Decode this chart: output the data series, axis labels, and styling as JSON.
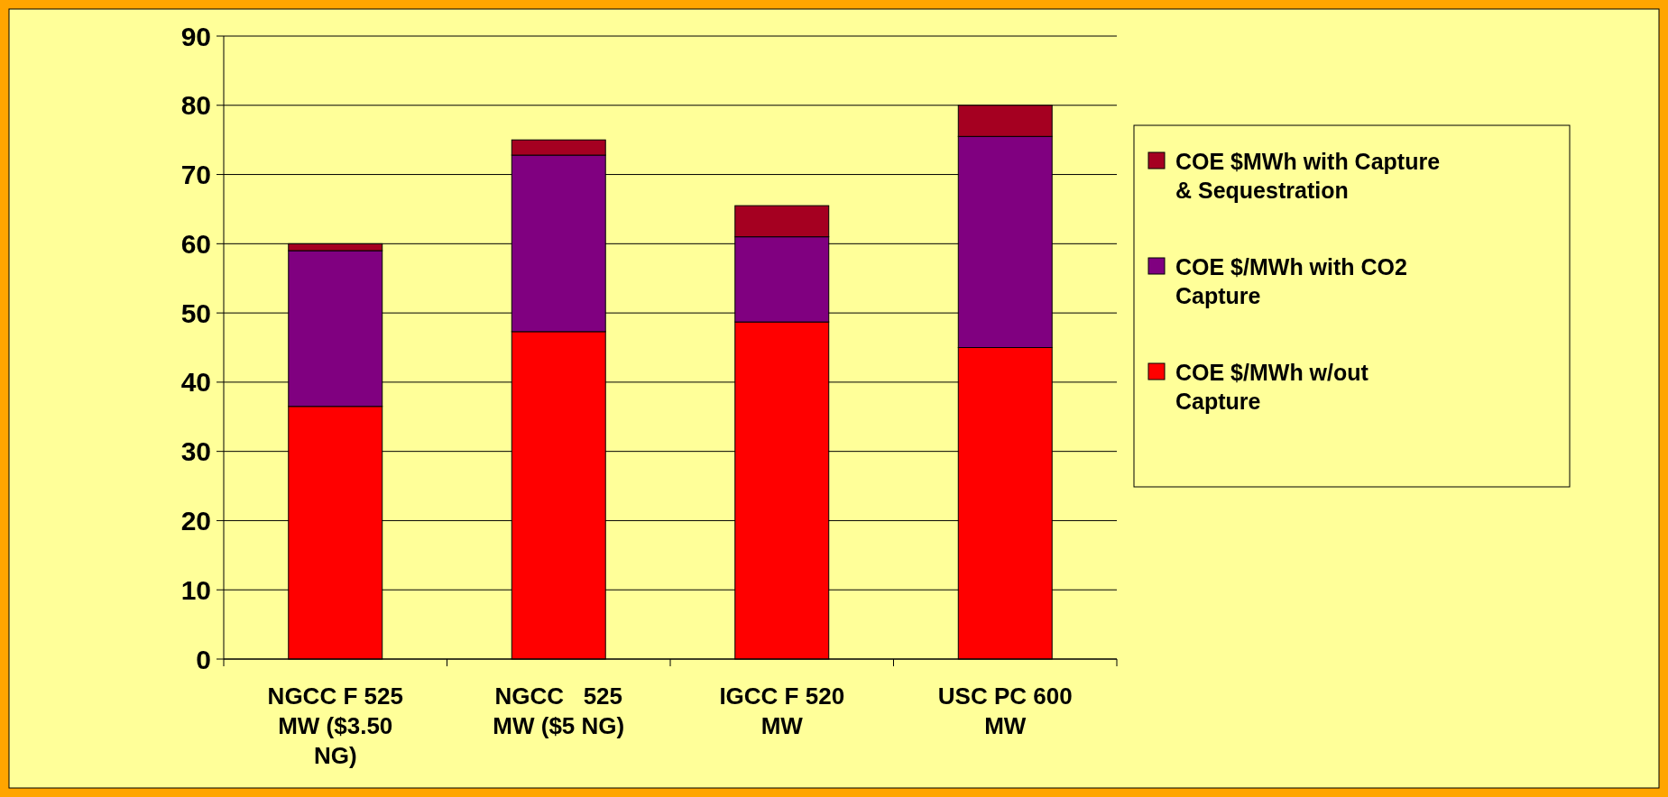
{
  "chart_data": {
    "type": "bar",
    "stacked": true,
    "categories": [
      "NGCC F 525 MW ($3.50 NG)",
      "NGCC   525 MW ($5 NG)",
      "IGCC F 520 MW",
      "USC PC 600 MW"
    ],
    "series": [
      {
        "name": "COE $/MWh w/out Capture",
        "color": "#ff0000",
        "values": [
          36.5,
          47.3,
          48.7,
          45
        ]
      },
      {
        "name": "COE $/MWh with CO2 Capture",
        "color": "#800080",
        "values": [
          22.5,
          25.5,
          12.3,
          30.5
        ]
      },
      {
        "name": "COE $MWh with Capture & Sequestration",
        "color": "#a50021",
        "values": [
          1,
          2.2,
          4.5,
          4.5
        ]
      }
    ],
    "ylim": [
      0,
      90
    ],
    "yticks": [
      0,
      10,
      20,
      30,
      40,
      50,
      60,
      70,
      80,
      90
    ],
    "grid": "y",
    "legend": "right"
  }
}
